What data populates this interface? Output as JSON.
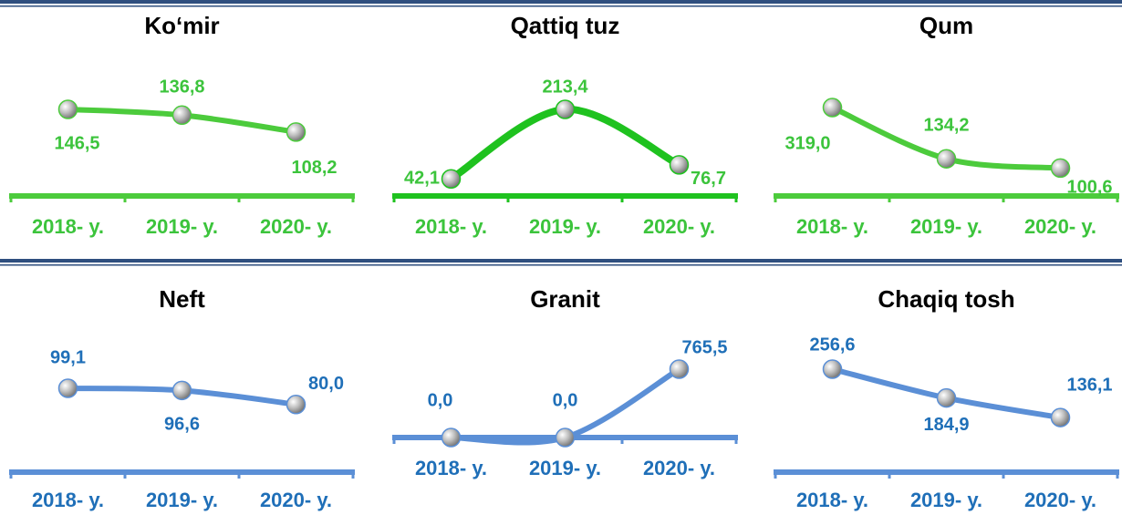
{
  "chart_data": [
    {
      "type": "line",
      "title": "Ko‘mir",
      "categories": [
        "2018- y.",
        "2019- y.",
        "2020- y."
      ],
      "values": [
        146.5,
        136.8,
        108.2
      ],
      "value_labels": [
        "146,5",
        "136,8",
        "108,2"
      ],
      "color": "#4ccb3c",
      "label_color": "#3cc43c"
    },
    {
      "type": "line",
      "title": "Qattiq tuz",
      "categories": [
        "2018- y.",
        "2019- y.",
        "2020- y."
      ],
      "values": [
        42.1,
        213.4,
        76.7
      ],
      "value_labels": [
        "42,1",
        "213,4",
        "76,7"
      ],
      "color": "#1fc21f",
      "label_color": "#3cc43c"
    },
    {
      "type": "line",
      "title": "Qum",
      "categories": [
        "2018- y.",
        "2019- y.",
        "2020- y."
      ],
      "values": [
        319.0,
        134.2,
        100.6
      ],
      "value_labels": [
        "319,0",
        "134,2",
        "100,6"
      ],
      "color": "#4ccb3c",
      "label_color": "#3cc43c"
    },
    {
      "type": "line",
      "title": "Neft",
      "categories": [
        "2018- y.",
        "2019- y.",
        "2020- y."
      ],
      "values": [
        99.1,
        96.6,
        80.0
      ],
      "value_labels": [
        "99,1",
        "96,6",
        "80,0"
      ],
      "color": "#5b8fd6",
      "label_color": "#1f6fb8"
    },
    {
      "type": "line",
      "title": "Granit",
      "categories": [
        "2018- y.",
        "2019- y.",
        "2020- y."
      ],
      "values": [
        0.0,
        0.0,
        765.5
      ],
      "value_labels": [
        "0,0",
        "0,0",
        "765,5"
      ],
      "color": "#5b8fd6",
      "label_color": "#1f6fb8"
    },
    {
      "type": "line",
      "title": "Chaqiq tosh",
      "categories": [
        "2018- y.",
        "2019- y.",
        "2020- y."
      ],
      "values": [
        256.6,
        184.9,
        136.1
      ],
      "value_labels": [
        "256,6",
        "184,9",
        "136,1"
      ],
      "color": "#5b8fd6",
      "label_color": "#1f6fb8"
    }
  ]
}
